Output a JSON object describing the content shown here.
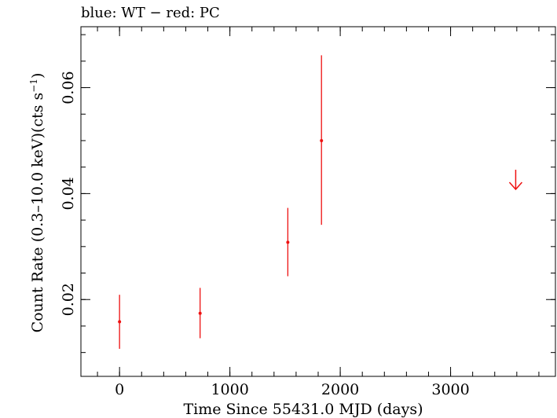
{
  "chart_data": {
    "type": "scatter",
    "title": "blue: WT − red: PC",
    "xlabel": "Time Since 55431.0 MJD (days)",
    "ylabel_main": "Count Rate (0.3–10.0 keV)(cts s",
    "ylabel_sup": "−1",
    "ylabel_tail": ")",
    "xlim": [
      -350,
      3950
    ],
    "ylim": [
      0.0055,
      0.0715
    ],
    "x_ticks": [
      0,
      1000,
      2000,
      3000
    ],
    "x_tick_labels": [
      "0",
      "1000",
      "2000",
      "3000"
    ],
    "x_minor_step": 200,
    "y_ticks": [
      0.02,
      0.04,
      0.06
    ],
    "y_tick_labels": [
      "0.02",
      "0.04",
      "0.06"
    ],
    "y_minor_step": 0.005,
    "grid": false,
    "series": [
      {
        "color": "#ee1111",
        "points": [
          {
            "x": 0,
            "y": 0.0158,
            "ylo": 0.0107,
            "yhi": 0.0209
          },
          {
            "x": 730,
            "y": 0.0174,
            "ylo": 0.0127,
            "yhi": 0.0222
          },
          {
            "x": 1525,
            "y": 0.0308,
            "ylo": 0.0244,
            "yhi": 0.0373
          },
          {
            "x": 1830,
            "y": 0.05,
            "ylo": 0.0341,
            "yhi": 0.0661
          }
        ],
        "upper_limits": [
          {
            "x": 3590,
            "y": 0.0445
          }
        ]
      }
    ]
  }
}
